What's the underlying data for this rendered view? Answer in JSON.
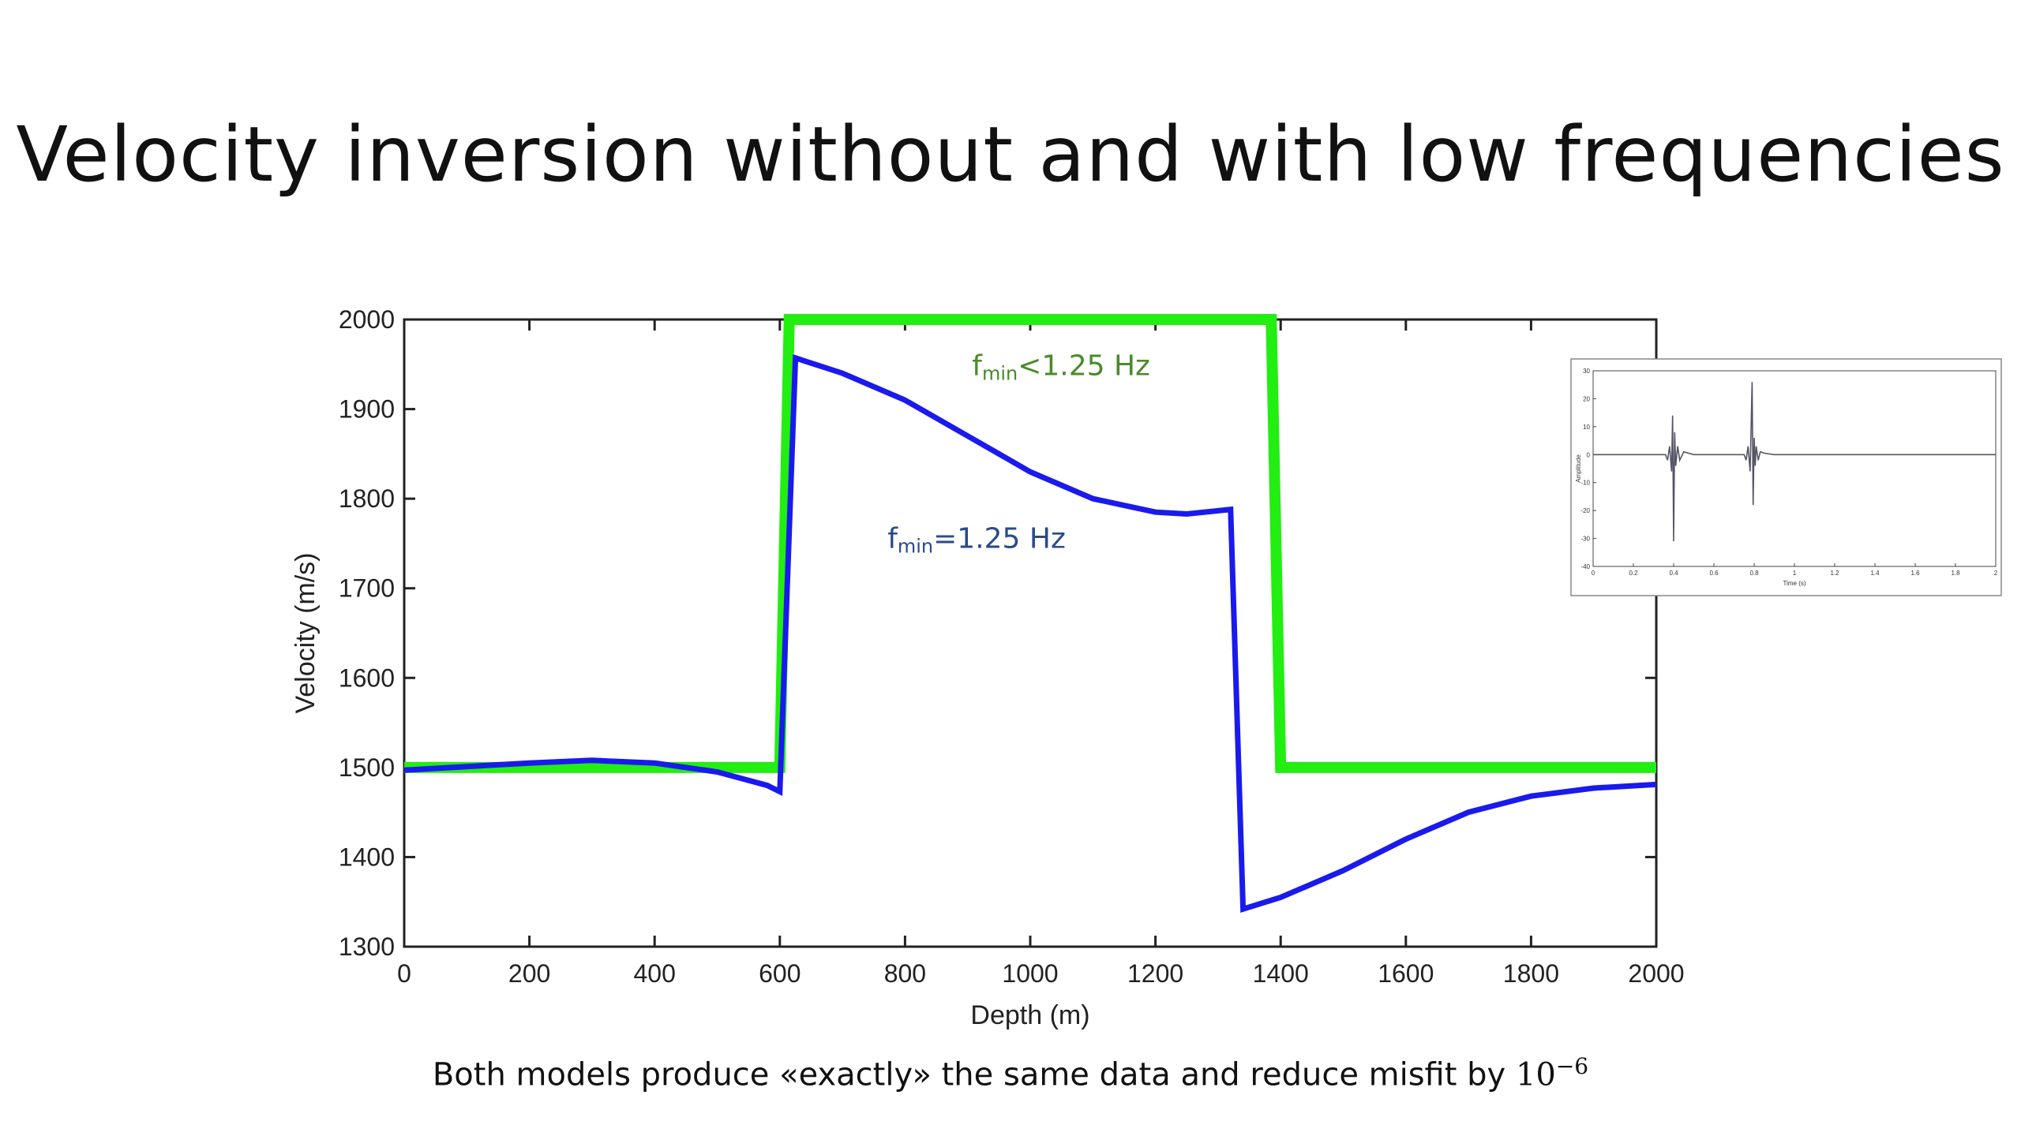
{
  "slide": {
    "title": "Velocity inversion without and with low frequencies",
    "caption_text": "Both models produce «exactly» the same data and reduce misfit by ",
    "caption_math": "10",
    "caption_exp": "−6"
  },
  "chart_data": [
    {
      "type": "line",
      "xlabel": "Depth (m)",
      "ylabel": "Velocity (m/s)",
      "xlim": [
        0,
        2000
      ],
      "ylim": [
        1300,
        2000
      ],
      "xticks": [
        "0",
        "200",
        "400",
        "600",
        "800",
        "1000",
        "1200",
        "1400",
        "1600",
        "1800",
        "2000"
      ],
      "yticks": [
        "1300",
        "1400",
        "1500",
        "1600",
        "1700",
        "1800",
        "1900",
        "2000"
      ],
      "grid": false,
      "series": [
        {
          "name_sub": "min",
          "name_prefix": "f",
          "name_rest": "<1.25 Hz",
          "color": "#22ee11",
          "x": [
            0,
            600,
            615,
            1385,
            1400,
            2000
          ],
          "y": [
            1500,
            1500,
            2000,
            2000,
            1500,
            1500
          ]
        },
        {
          "name_sub": "min",
          "name_prefix": "f",
          "name_rest": "=1.25 Hz",
          "color": "#1a1aee",
          "x": [
            0,
            100,
            200,
            300,
            400,
            500,
            580,
            600,
            625,
            700,
            800,
            900,
            1000,
            1100,
            1200,
            1250,
            1320,
            1340,
            1400,
            1500,
            1600,
            1700,
            1800,
            1900,
            2000
          ],
          "y": [
            1497,
            1501,
            1505,
            1508,
            1505,
            1495,
            1480,
            1473,
            1957,
            1940,
            1910,
            1870,
            1830,
            1800,
            1785,
            1783,
            1788,
            1342,
            1355,
            1385,
            1420,
            1450,
            1468,
            1477,
            1481
          ]
        }
      ]
    },
    {
      "type": "line",
      "xlabel": "Time (s)",
      "ylabel": "Amplitude",
      "xlim": [
        0,
        2
      ],
      "ylim": [
        -40,
        30
      ],
      "xticks": [
        "0",
        "0.2",
        "0.4",
        "0.6",
        "0.8",
        "1",
        "1.2",
        "1.4",
        "1.6",
        "1.8",
        "2"
      ],
      "yticks": [
        "30",
        "20",
        "10",
        "0",
        "-10",
        "-20",
        "-30",
        "-40"
      ],
      "series": [
        {
          "color": "#555566",
          "x": [
            0,
            0.36,
            0.37,
            0.38,
            0.39,
            0.395,
            0.4,
            0.405,
            0.41,
            0.42,
            0.43,
            0.45,
            0.5,
            0.75,
            0.76,
            0.77,
            0.78,
            0.79,
            0.795,
            0.8,
            0.805,
            0.81,
            0.82,
            0.83,
            0.85,
            0.9,
            2
          ],
          "y": [
            0,
            0,
            -2,
            3,
            -6,
            14,
            -31,
            8,
            -4,
            3,
            -2,
            1,
            0,
            0,
            -2,
            3,
            -6,
            26,
            -18,
            6,
            -4,
            3,
            -2,
            1,
            0.5,
            0,
            0
          ]
        }
      ]
    }
  ]
}
